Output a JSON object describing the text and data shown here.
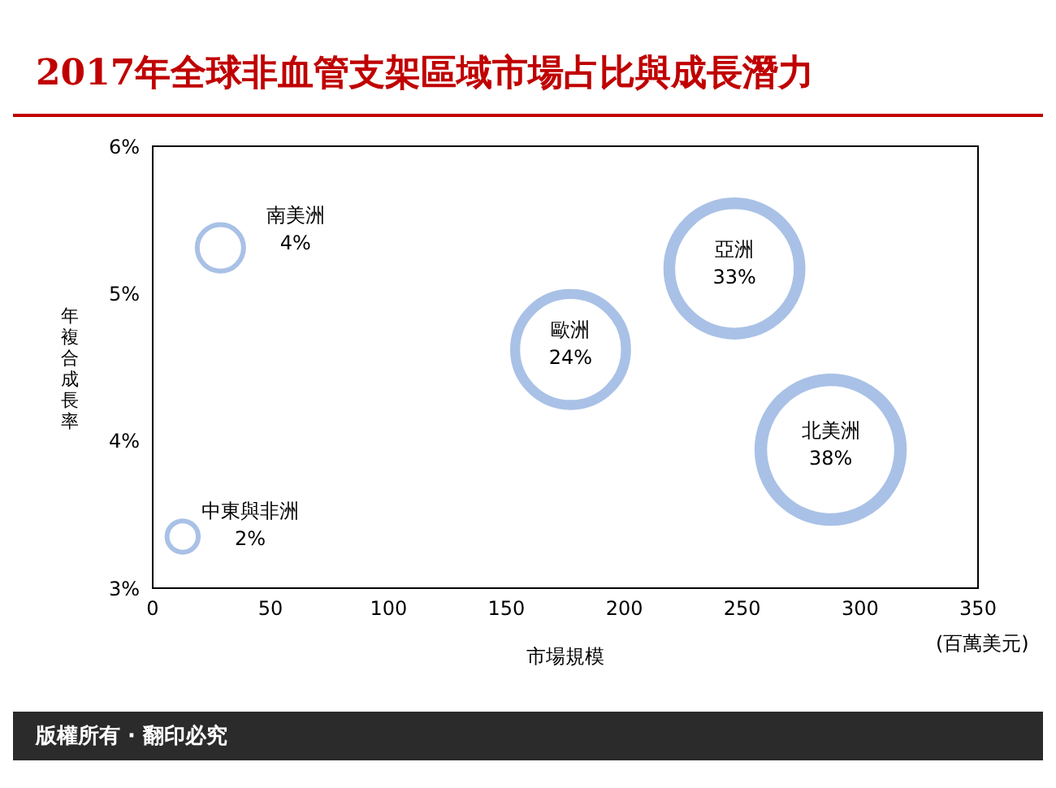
{
  "chart_data": {
    "type": "bubble",
    "title": "2017年全球非血管支架區域市場占比與成長潛力",
    "xlabel": "市場規模",
    "ylabel": "年複合成長率",
    "x": [
      28.7,
      246.7,
      177.2,
      287.5,
      12.7
    ],
    "series": [
      {
        "color": "#a9c1e6",
        "values": [
          5.31,
          5.17,
          4.62,
          3.94,
          3.35
        ],
        "sizes": [
          0.11,
          0.87,
          0.63,
          1,
          0.05
        ],
        "value_labels": [
          "南美洲\n4%",
          "亞洲\n33%",
          "歐洲\n24%",
          "北美洲\n38%",
          "中東與非洲\n2%"
        ]
      }
    ],
    "xlim": [
      0,
      350
    ],
    "xticks": [
      0,
      50,
      100,
      150,
      200,
      250,
      300,
      350
    ],
    "ylim": [
      3,
      6
    ],
    "yticks": [
      {
        "value": 3,
        "label": "3%"
      },
      {
        "value": 4,
        "label": "4%"
      },
      {
        "value": 5,
        "label": "5%"
      },
      {
        "value": 6,
        "label": "6%"
      }
    ],
    "grid": false,
    "legend": false,
    "annotations": [
      "(百萬美元)",
      "版權所有 · 翻印必究"
    ]
  }
}
